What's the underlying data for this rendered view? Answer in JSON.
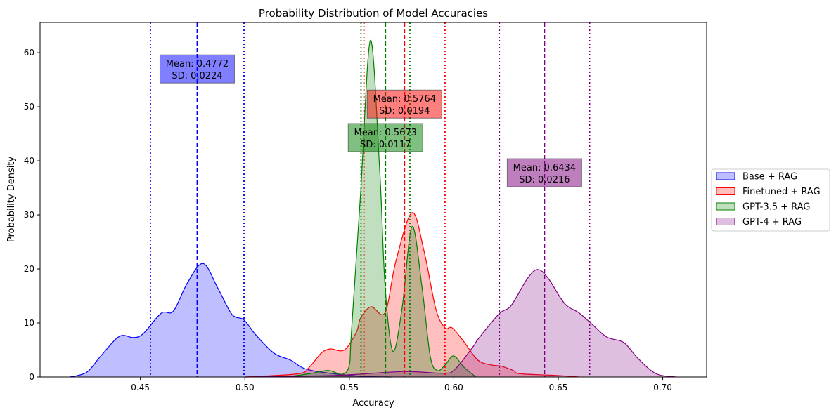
{
  "chart_data": {
    "type": "area",
    "title": "Probability Distribution of Model Accuracies",
    "xlabel": "Accuracy",
    "ylabel": "Probability Density",
    "xlim": [
      0.402,
      0.721
    ],
    "ylim": [
      0,
      65.6
    ],
    "xticks": [
      0.45,
      0.5,
      0.55,
      0.6,
      0.65,
      0.7
    ],
    "xtick_labels": [
      "0.45",
      "0.50",
      "0.55",
      "0.60",
      "0.65",
      "0.70"
    ],
    "yticks": [
      0,
      10,
      20,
      30,
      40,
      50,
      60
    ],
    "ytick_labels": [
      "0",
      "10",
      "20",
      "30",
      "40",
      "50",
      "60"
    ],
    "grid": false,
    "legend_placement": "outside-right",
    "series": [
      {
        "name": "Base + RAG",
        "color": "#0000ff",
        "mean": 0.4772,
        "sd": 0.0224,
        "annotation": {
          "mean_text": "Mean: 0.4772",
          "sd_text": "SD: 0.0224",
          "y": 57
        },
        "points": [
          [
            0.4163,
            0
          ],
          [
            0.4244,
            0.9
          ],
          [
            0.4311,
            3.9
          ],
          [
            0.4399,
            7.5
          ],
          [
            0.4466,
            7.3
          ],
          [
            0.4513,
            8.0
          ],
          [
            0.46,
            11.8
          ],
          [
            0.4658,
            12.2
          ],
          [
            0.4725,
            17.4
          ],
          [
            0.48,
            21.0
          ],
          [
            0.487,
            16.5
          ],
          [
            0.4938,
            11.6
          ],
          [
            0.4995,
            10.6
          ],
          [
            0.5052,
            7.8
          ],
          [
            0.514,
            4.4
          ],
          [
            0.522,
            3.1
          ],
          [
            0.5308,
            1.3
          ],
          [
            0.5534,
            0.2
          ],
          [
            0.57,
            0
          ]
        ]
      },
      {
        "name": "Finetuned + RAG",
        "color": "#ff0000",
        "mean": 0.5764,
        "sd": 0.0194,
        "annotation": {
          "mean_text": "Mean: 0.5764",
          "sd_text": "SD: 0.0194",
          "y": 50.5
        },
        "points": [
          [
            0.5,
            0
          ],
          [
            0.5254,
            0.6
          ],
          [
            0.5308,
            1.8
          ],
          [
            0.5365,
            4.4
          ],
          [
            0.5409,
            5.2
          ],
          [
            0.5476,
            5.0
          ],
          [
            0.5534,
            8.3
          ],
          [
            0.5554,
            10.9
          ],
          [
            0.5604,
            13.0
          ],
          [
            0.5671,
            11.9
          ],
          [
            0.5722,
            21.3
          ],
          [
            0.58,
            30.4
          ],
          [
            0.5857,
            23.4
          ],
          [
            0.5914,
            12.6
          ],
          [
            0.5958,
            9.1
          ],
          [
            0.5992,
            9.1
          ],
          [
            0.6049,
            6.5
          ],
          [
            0.6116,
            3.1
          ],
          [
            0.6184,
            2.2
          ],
          [
            0.6227,
            2.0
          ],
          [
            0.6285,
            1.2
          ],
          [
            0.6318,
            0.6
          ],
          [
            0.6487,
            0.3
          ],
          [
            0.66,
            0
          ]
        ]
      },
      {
        "name": "GPT-3.5 + RAG",
        "color": "#008000",
        "mean": 0.5673,
        "sd": 0.0117,
        "annotation": {
          "mean_text": "Mean: 0.5673",
          "sd_text": "SD: 0.0117",
          "y": 44.3
        },
        "points": [
          [
            0.52,
            0
          ],
          [
            0.5308,
            0.6
          ],
          [
            0.5399,
            1.2
          ],
          [
            0.5466,
            0.5
          ],
          [
            0.55,
            2.2
          ],
          [
            0.551,
            8.3
          ],
          [
            0.5554,
            34
          ],
          [
            0.5601,
            62.3
          ],
          [
            0.5645,
            38.6
          ],
          [
            0.5671,
            16.9
          ],
          [
            0.5708,
            4.8
          ],
          [
            0.5752,
            12.6
          ],
          [
            0.58,
            27.8
          ],
          [
            0.5847,
            16.9
          ],
          [
            0.5887,
            3.9
          ],
          [
            0.5921,
            1.2
          ],
          [
            0.5958,
            2.2
          ],
          [
            0.5999,
            3.9
          ],
          [
            0.6049,
            1.8
          ],
          [
            0.6106,
            0
          ]
        ]
      },
      {
        "name": "GPT-4 + RAG",
        "color": "#800080",
        "mean": 0.6434,
        "sd": 0.0216,
        "annotation": {
          "mean_text": "Mean: 0.6434",
          "sd_text": "SD: 0.0216",
          "y": 37.8
        },
        "points": [
          [
            0.5,
            0
          ],
          [
            0.5438,
            0.3
          ],
          [
            0.5756,
            1.0
          ],
          [
            0.5948,
            0.7
          ],
          [
            0.6005,
            1.4
          ],
          [
            0.6094,
            5.7
          ],
          [
            0.6116,
            7.0
          ],
          [
            0.6217,
            11.7
          ],
          [
            0.6274,
            13.2
          ],
          [
            0.6352,
            18.2
          ],
          [
            0.6402,
            19.9
          ],
          [
            0.6453,
            18.2
          ],
          [
            0.653,
            13.6
          ],
          [
            0.6598,
            11.9
          ],
          [
            0.6655,
            10.0
          ],
          [
            0.6732,
            7.4
          ],
          [
            0.6813,
            6.4
          ],
          [
            0.688,
            3.5
          ],
          [
            0.6968,
            0.6
          ],
          [
            0.7066,
            0
          ]
        ]
      }
    ]
  }
}
